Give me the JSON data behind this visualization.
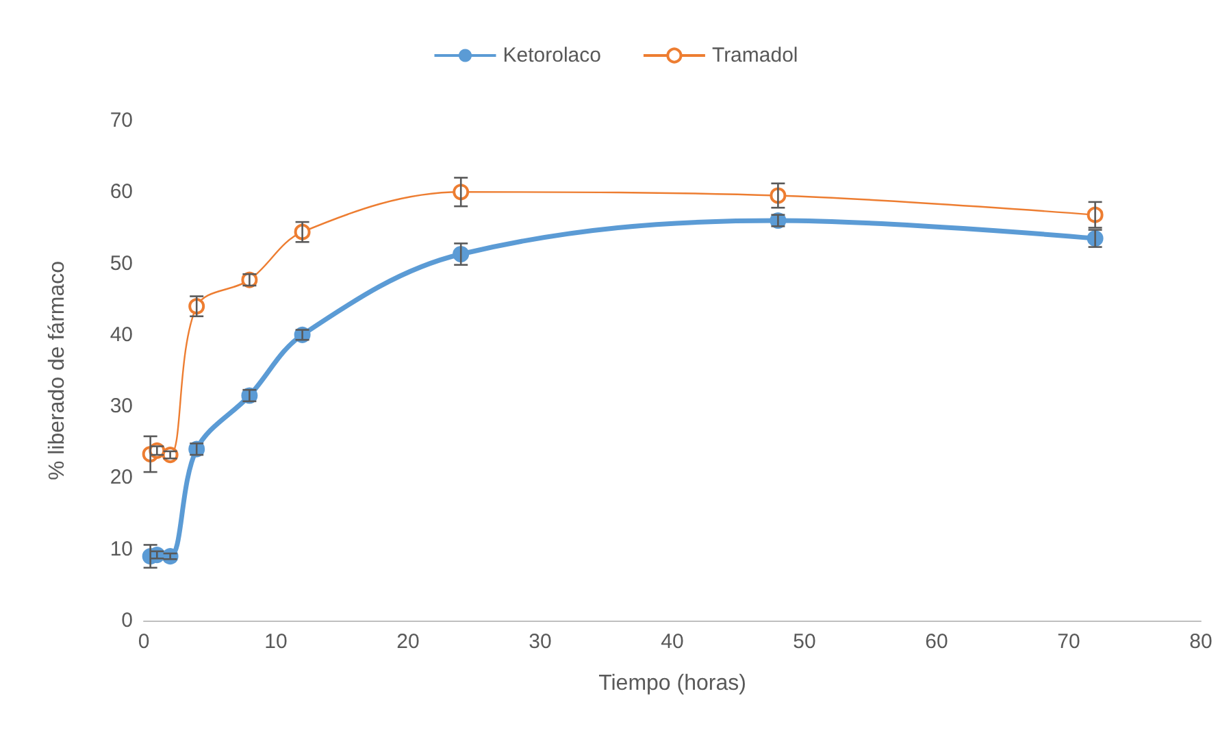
{
  "chart_data": {
    "type": "line",
    "xlabel": "Tiempo (horas)",
    "ylabel": "% liberado de fármaco",
    "x": [
      0.5,
      1,
      2,
      4,
      8,
      12,
      24,
      48,
      72
    ],
    "series": [
      {
        "name": "Ketorolaco",
        "color": "#5b9bd5",
        "values": [
          9,
          9.2,
          9,
          24,
          31.5,
          40,
          51.3,
          56,
          53.5
        ],
        "errors": [
          1.6,
          0.5,
          0.4,
          0.8,
          0.8,
          0.7,
          1.5,
          0.8,
          1.2
        ]
      },
      {
        "name": "Tramadol",
        "color": "#ed7d31",
        "values": [
          23.3,
          23.8,
          23.2,
          44,
          47.7,
          54.4,
          60,
          59.5,
          56.8
        ],
        "errors": [
          2.5,
          0.6,
          0.5,
          1.4,
          0.8,
          1.4,
          2,
          1.7,
          1.8
        ]
      }
    ],
    "xlim": [
      0,
      80
    ],
    "xticks": [
      0,
      10,
      20,
      30,
      40,
      50,
      60,
      70,
      80
    ],
    "ylim": [
      0,
      70
    ],
    "yticks": [
      0,
      10,
      20,
      30,
      40,
      50,
      60,
      70
    ],
    "grid": false,
    "legend": "top",
    "marker": "circle"
  }
}
